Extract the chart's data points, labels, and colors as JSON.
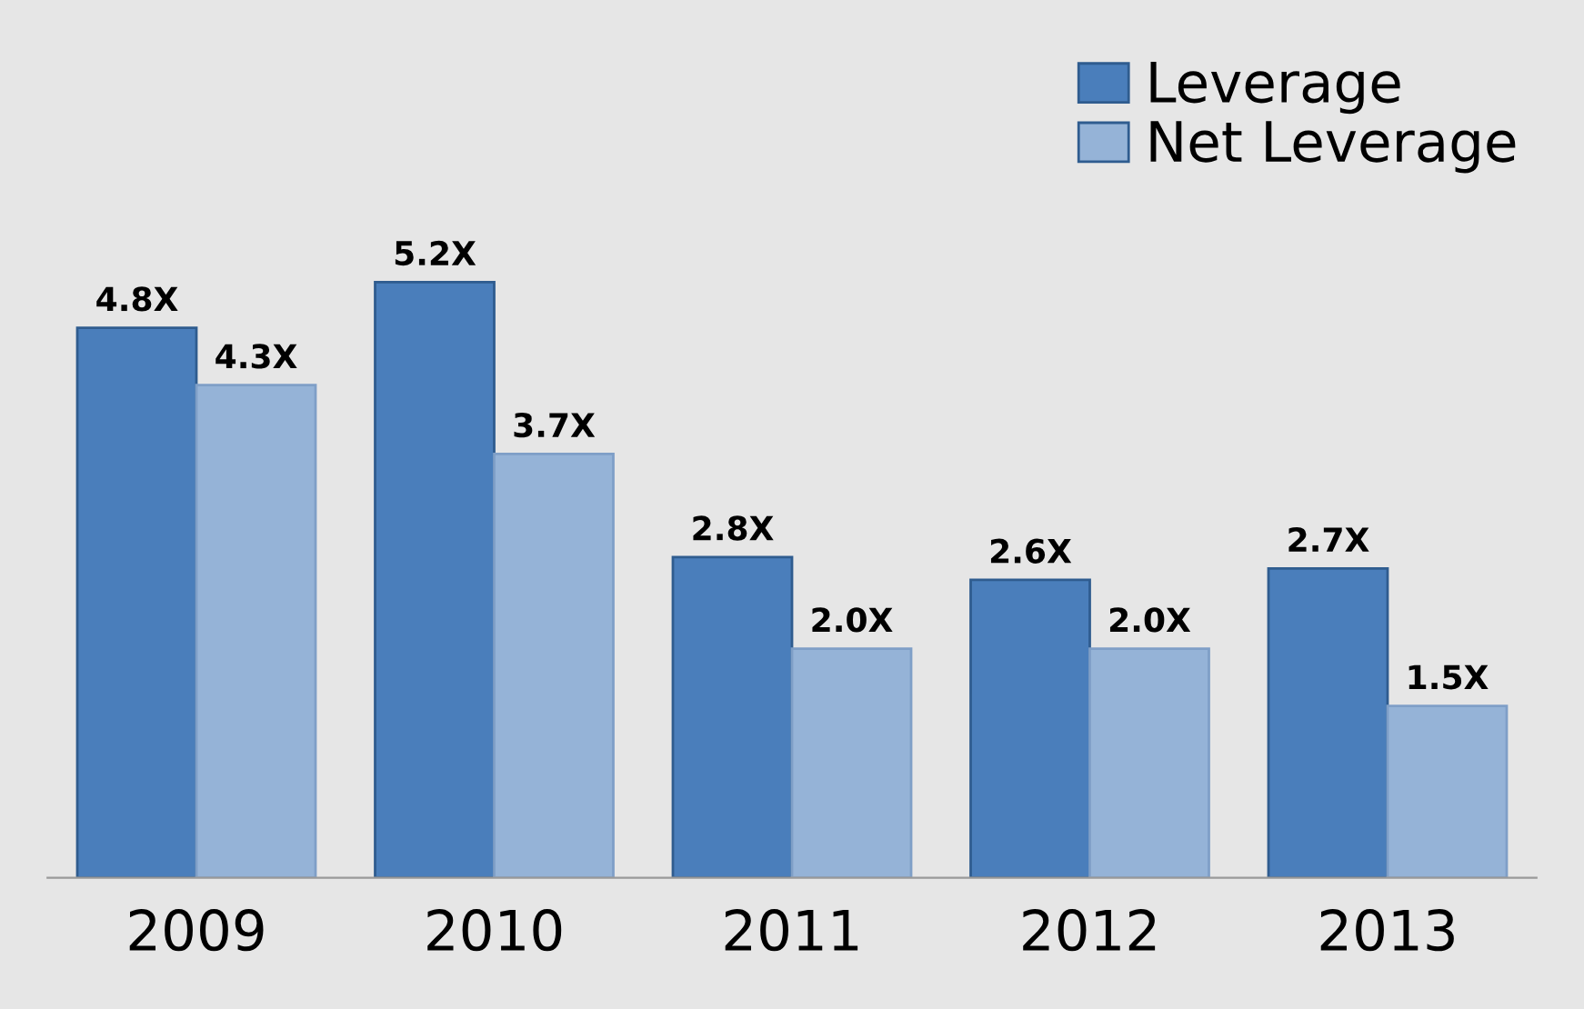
{
  "chart_data": {
    "type": "bar",
    "categories": [
      "2009",
      "2010",
      "2011",
      "2012",
      "2013"
    ],
    "series": [
      {
        "name": "Leverage",
        "color": "#4a7ebb",
        "values": [
          4.8,
          5.2,
          2.8,
          2.6,
          2.7
        ],
        "value_labels": [
          "4.8X",
          "5.2X",
          "2.8X",
          "2.6X",
          "2.7X"
        ]
      },
      {
        "name": "Net Leverage",
        "color": "#95b3d7",
        "values": [
          4.3,
          3.7,
          2.0,
          2.0,
          1.5
        ],
        "value_labels": [
          "4.3X",
          "3.7X",
          "2.0X",
          "2.0X",
          "1.5X"
        ]
      }
    ],
    "legend": "top right",
    "grid": false
  }
}
